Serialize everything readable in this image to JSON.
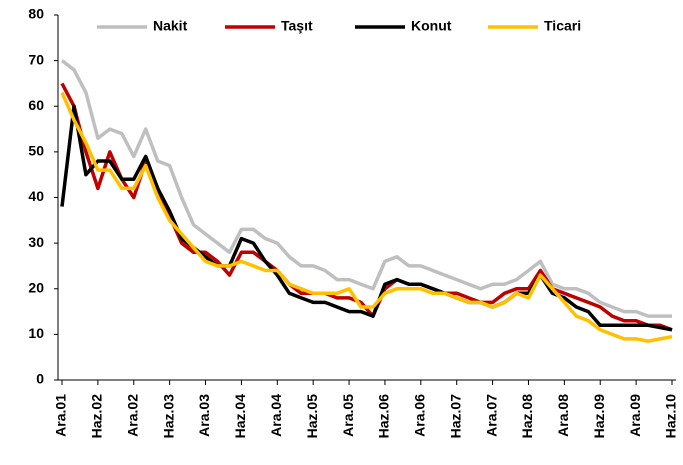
{
  "chart_data": {
    "type": "line",
    "categories": [
      "Ara.01",
      null,
      null,
      "Haz.02",
      null,
      null,
      "Ara.02",
      null,
      null,
      "Haz.03",
      null,
      null,
      "Ara.03",
      null,
      null,
      "Haz.04",
      null,
      null,
      "Ara.04",
      null,
      null,
      "Haz.05",
      null,
      null,
      "Ara.05",
      null,
      null,
      "Haz.06",
      null,
      null,
      "Ara.06",
      null,
      null,
      "Haz.07",
      null,
      null,
      "Ara.07",
      null,
      null,
      "Haz.08",
      null,
      null,
      "Ara.08",
      null,
      null,
      "Haz.09",
      null,
      null,
      "Ara.09",
      null,
      null,
      "Haz.10"
    ],
    "series": [
      {
        "name": "Nakit",
        "color": "#bfbfbf",
        "values": [
          70,
          68,
          63,
          53,
          55,
          54,
          49,
          55,
          48,
          47,
          40,
          34,
          32,
          30,
          28,
          33,
          33,
          31,
          30,
          27,
          25,
          25,
          24,
          22,
          22,
          21,
          20,
          26,
          27,
          25,
          25,
          24,
          23,
          22,
          21,
          20,
          21,
          21,
          22,
          24,
          26,
          21,
          20,
          20,
          19,
          17,
          16,
          15,
          15,
          14,
          14,
          14
        ]
      },
      {
        "name": "Taşıt",
        "color": "#c00000",
        "values": [
          65,
          60,
          50,
          42,
          50,
          44,
          40,
          48,
          42,
          36,
          30,
          28,
          28,
          26,
          23,
          28,
          28,
          26,
          24,
          21,
          19,
          19,
          19,
          18,
          18,
          17,
          14,
          20,
          22,
          21,
          21,
          20,
          19,
          19,
          18,
          17,
          17,
          19,
          20,
          20,
          24,
          20,
          19,
          18,
          17,
          16,
          14,
          13,
          13,
          12,
          12,
          11
        ]
      },
      {
        "name": "Konut",
        "color": "#000000",
        "values": [
          38,
          60,
          45,
          48,
          48,
          44,
          44,
          49,
          42,
          37,
          31,
          29,
          27,
          25,
          25,
          31,
          30,
          26,
          23,
          19,
          18,
          17,
          17,
          16,
          15,
          15,
          14,
          21,
          22,
          21,
          21,
          20,
          19,
          18,
          17,
          17,
          16,
          17,
          19,
          19,
          23,
          19,
          18,
          16,
          15,
          12,
          12,
          12,
          12,
          12,
          11.5,
          11
        ]
      },
      {
        "name": "Ticari",
        "color": "#ffc000",
        "values": [
          63,
          57,
          52,
          46,
          46,
          42,
          42,
          47,
          40,
          35,
          32,
          29,
          26,
          25,
          25,
          26,
          25,
          24,
          24,
          21,
          20,
          19,
          19,
          19,
          20,
          16,
          16,
          19,
          20,
          20,
          20,
          19,
          19,
          18,
          17,
          17,
          16,
          17,
          19,
          18,
          23,
          20,
          17,
          14,
          13,
          11,
          10,
          9,
          9,
          8.5,
          9,
          9.5
        ]
      }
    ],
    "ylim": [
      0,
      80
    ],
    "yticks": [
      0,
      10,
      20,
      30,
      40,
      50,
      60,
      70,
      80
    ],
    "grid": false,
    "legend": "top"
  }
}
